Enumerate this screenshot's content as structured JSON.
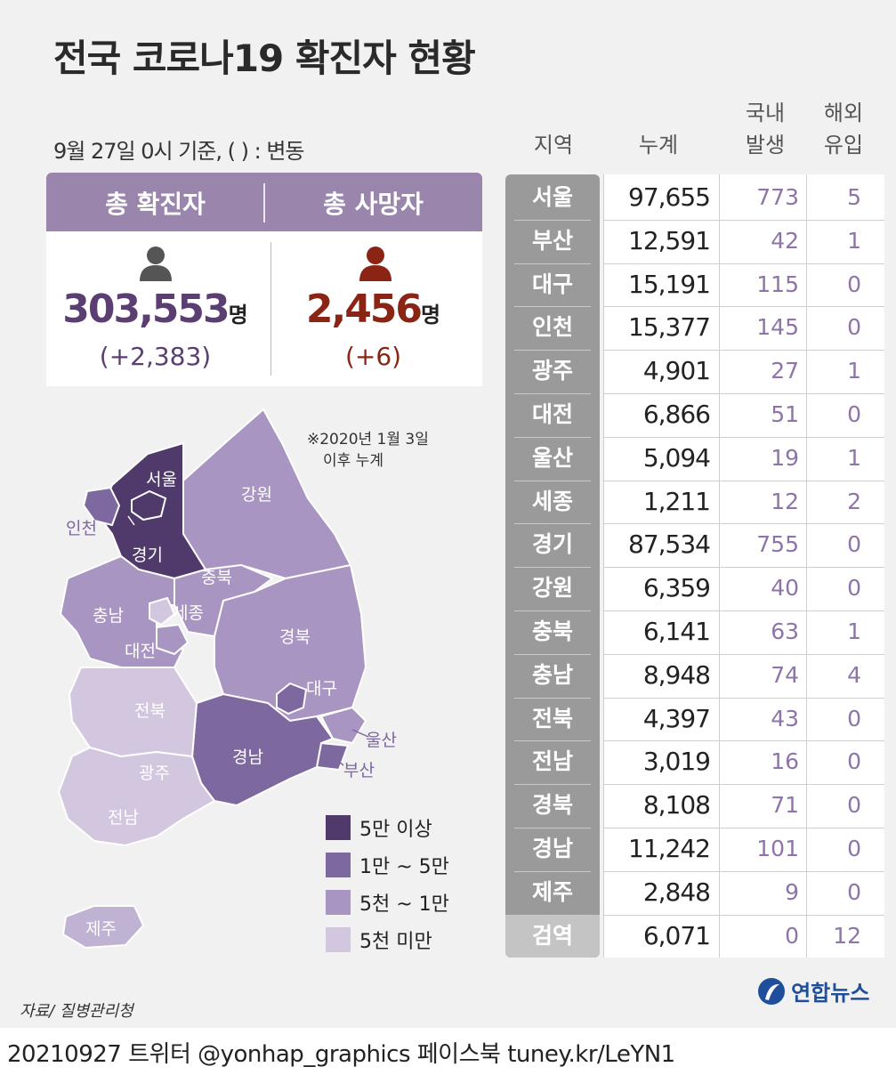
{
  "title": "전국 코로나19 확진자 현황",
  "basis": "9월 27일 0시 기준, ( ) : 변동",
  "summary": {
    "confirmed_label": "총 확진자",
    "deaths_label": "총 사망자",
    "confirmed_value": "303,553",
    "deaths_value": "2,456",
    "unit": "명",
    "confirmed_change": "(+2,383)",
    "deaths_change": "(+6)",
    "confirmed_color": "#5b3f73",
    "deaths_color": "#8a2515"
  },
  "note": {
    "line1": "※2020년 1월 3일",
    "line2": "이후 누계"
  },
  "map_labels": {
    "seoul": "서울",
    "incheon": "인천",
    "gyeonggi": "경기",
    "gangwon": "강원",
    "chungbuk": "충북",
    "chungnam": "충남",
    "sejong": "세종",
    "daejeon": "대전",
    "gyeongbuk": "경북",
    "daegu": "대구",
    "ulsan": "울산",
    "busan": "부산",
    "jeonbuk": "전북",
    "gwangju": "광주",
    "jeonnam": "전남",
    "gyeongnam": "경남",
    "jeju": "제주"
  },
  "legend": [
    {
      "label": "5만 이상",
      "color": "#4f3a6b"
    },
    {
      "label": "1만 ~ 5만",
      "color": "#7e68a0"
    },
    {
      "label": "5천 ~ 1만",
      "color": "#a895c2"
    },
    {
      "label": "5천 미만",
      "color": "#d2c7df"
    }
  ],
  "table": {
    "headers": {
      "region": "지역",
      "cumulative": "누계",
      "domestic_line1": "국내",
      "domestic_line2": "발생",
      "overseas_line1": "해외",
      "overseas_line2": "유입"
    },
    "rows": [
      {
        "region": "서울",
        "cumulative": "97,655",
        "domestic": "773",
        "overseas": "5"
      },
      {
        "region": "부산",
        "cumulative": "12,591",
        "domestic": "42",
        "overseas": "1"
      },
      {
        "region": "대구",
        "cumulative": "15,191",
        "domestic": "115",
        "overseas": "0"
      },
      {
        "region": "인천",
        "cumulative": "15,377",
        "domestic": "145",
        "overseas": "0"
      },
      {
        "region": "광주",
        "cumulative": "4,901",
        "domestic": "27",
        "overseas": "1"
      },
      {
        "region": "대전",
        "cumulative": "6,866",
        "domestic": "51",
        "overseas": "0"
      },
      {
        "region": "울산",
        "cumulative": "5,094",
        "domestic": "19",
        "overseas": "1"
      },
      {
        "region": "세종",
        "cumulative": "1,211",
        "domestic": "12",
        "overseas": "2"
      },
      {
        "region": "경기",
        "cumulative": "87,534",
        "domestic": "755",
        "overseas": "0"
      },
      {
        "region": "강원",
        "cumulative": "6,359",
        "domestic": "40",
        "overseas": "0"
      },
      {
        "region": "충북",
        "cumulative": "6,141",
        "domestic": "63",
        "overseas": "1"
      },
      {
        "region": "충남",
        "cumulative": "8,948",
        "domestic": "74",
        "overseas": "4"
      },
      {
        "region": "전북",
        "cumulative": "4,397",
        "domestic": "43",
        "overseas": "0"
      },
      {
        "region": "전남",
        "cumulative": "3,019",
        "domestic": "16",
        "overseas": "0"
      },
      {
        "region": "경북",
        "cumulative": "8,108",
        "domestic": "71",
        "overseas": "0"
      },
      {
        "region": "경남",
        "cumulative": "11,242",
        "domestic": "101",
        "overseas": "0"
      },
      {
        "region": "제주",
        "cumulative": "2,848",
        "domestic": "9",
        "overseas": "0"
      },
      {
        "region": "검역",
        "cumulative": "6,071",
        "domestic": "0",
        "overseas": "12"
      }
    ]
  },
  "source": "자료/ 질병관리청",
  "logo": "연합뉴스",
  "footer": "20210927 트위터 @yonhap_graphics  페이스북 tuney.kr/LeYN1"
}
